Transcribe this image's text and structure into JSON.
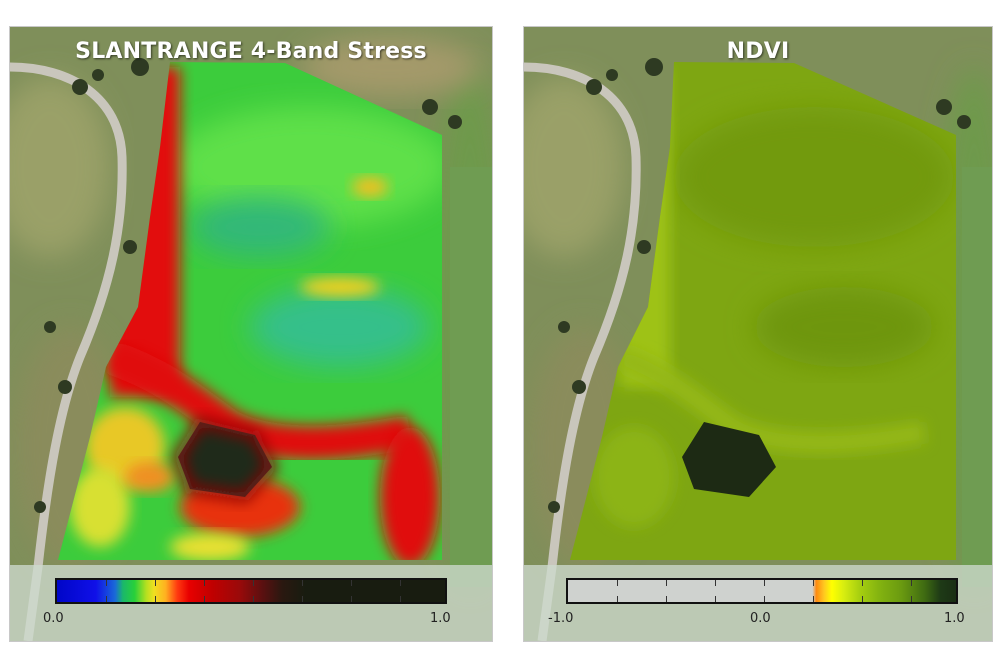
{
  "panels": {
    "stress": {
      "title": "SLANTRANGE 4-Band Stress",
      "legend": {
        "min_label": "0.0",
        "max_label": "1.0"
      }
    },
    "ndvi": {
      "title": "NDVI",
      "legend": {
        "min_label": "-1.0",
        "mid_label": "0.0",
        "max_label": "1.0"
      }
    }
  },
  "colors": {
    "stress_low": "#0006c8",
    "stress_mid": "#28d03a",
    "stress_high": "#e80000",
    "stress_max": "#181c10",
    "ndvi_field": "#7ea612",
    "ndvi_pond": "#1d2a14"
  }
}
